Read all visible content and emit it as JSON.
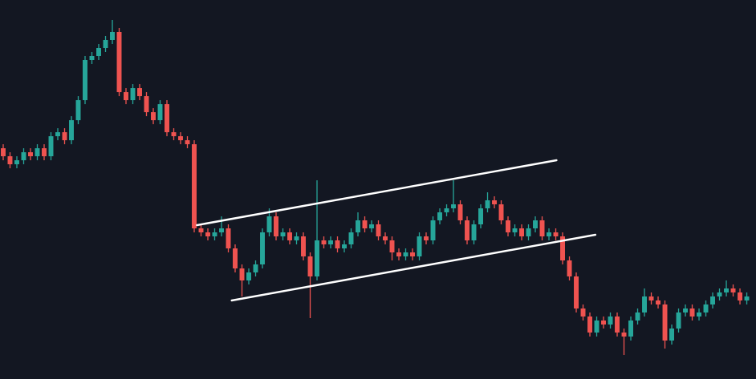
{
  "chart_data": {
    "type": "candlestick",
    "up_color": "#26a69a",
    "down_color": "#ef5350",
    "background": "#131722",
    "grid": false,
    "xlim": [
      -0.47,
      110.35
    ],
    "ylim": [
      0,
      473
    ],
    "open": [
      288,
      278,
      268,
      273,
      283,
      278,
      288,
      278,
      303,
      308,
      298,
      323,
      348,
      398,
      403,
      413,
      423,
      433,
      358,
      348,
      363,
      353,
      333,
      323,
      343,
      308,
      303,
      298,
      293,
      188,
      183,
      178,
      183,
      188,
      163,
      138,
      123,
      133,
      143,
      183,
      203,
      178,
      183,
      173,
      178,
      153,
      128,
      173,
      168,
      173,
      163,
      168,
      183,
      198,
      188,
      193,
      178,
      173,
      158,
      153,
      158,
      153,
      178,
      173,
      198,
      208,
      213,
      218,
      198,
      173,
      193,
      213,
      223,
      218,
      198,
      183,
      188,
      178,
      188,
      198,
      178,
      183,
      178,
      148,
      128,
      88,
      78,
      58,
      73,
      68,
      78,
      58,
      53,
      73,
      83,
      103,
      98,
      93,
      48,
      63,
      83,
      88,
      78,
      83,
      93,
      103,
      108,
      113,
      108,
      98
    ],
    "high": [
      293,
      283,
      278,
      288,
      288,
      293,
      293,
      308,
      313,
      313,
      328,
      353,
      403,
      408,
      418,
      428,
      448,
      438,
      363,
      368,
      368,
      358,
      338,
      348,
      348,
      313,
      308,
      303,
      298,
      193,
      188,
      188,
      203,
      193,
      168,
      143,
      138,
      148,
      188,
      213,
      208,
      188,
      188,
      183,
      183,
      158,
      248,
      178,
      178,
      178,
      173,
      188,
      208,
      203,
      198,
      198,
      183,
      178,
      163,
      163,
      163,
      183,
      183,
      203,
      213,
      218,
      248,
      223,
      203,
      198,
      218,
      233,
      228,
      223,
      203,
      193,
      193,
      193,
      203,
      203,
      188,
      188,
      183,
      153,
      133,
      93,
      83,
      78,
      78,
      83,
      83,
      63,
      78,
      88,
      113,
      108,
      103,
      98,
      68,
      88,
      93,
      93,
      88,
      98,
      108,
      113,
      123,
      118,
      113,
      108
    ],
    "low": [
      273,
      263,
      263,
      268,
      273,
      273,
      273,
      273,
      298,
      293,
      293,
      318,
      343,
      393,
      398,
      408,
      418,
      353,
      343,
      343,
      348,
      328,
      318,
      318,
      303,
      298,
      293,
      288,
      183,
      178,
      173,
      173,
      178,
      158,
      133,
      103,
      118,
      128,
      138,
      178,
      173,
      173,
      168,
      168,
      148,
      76,
      123,
      163,
      163,
      158,
      158,
      163,
      178,
      183,
      183,
      173,
      168,
      148,
      148,
      148,
      148,
      148,
      168,
      168,
      193,
      203,
      208,
      193,
      168,
      168,
      188,
      208,
      213,
      193,
      178,
      178,
      173,
      173,
      183,
      173,
      173,
      173,
      143,
      123,
      83,
      73,
      53,
      53,
      63,
      63,
      53,
      30,
      48,
      68,
      78,
      93,
      88,
      38,
      43,
      58,
      78,
      73,
      73,
      78,
      88,
      98,
      103,
      103,
      93,
      93
    ],
    "close": [
      278,
      268,
      273,
      283,
      278,
      288,
      278,
      303,
      308,
      298,
      323,
      348,
      398,
      403,
      413,
      423,
      433,
      358,
      348,
      363,
      353,
      333,
      323,
      343,
      308,
      303,
      298,
      293,
      188,
      183,
      178,
      183,
      188,
      163,
      138,
      123,
      133,
      143,
      183,
      203,
      178,
      183,
      173,
      178,
      153,
      128,
      173,
      168,
      173,
      163,
      168,
      183,
      198,
      188,
      193,
      178,
      173,
      158,
      153,
      158,
      153,
      178,
      173,
      198,
      208,
      213,
      218,
      198,
      173,
      193,
      213,
      223,
      218,
      198,
      183,
      188,
      178,
      188,
      198,
      178,
      183,
      178,
      148,
      128,
      88,
      78,
      58,
      73,
      68,
      78,
      58,
      53,
      73,
      83,
      103,
      98,
      93,
      48,
      63,
      83,
      88,
      78,
      83,
      93,
      103,
      108,
      113,
      108,
      98,
      103
    ],
    "lines": [
      {
        "color": "#ffffff",
        "x": [
          28.4,
          81.1
        ],
        "y": [
          192,
          273
        ]
      },
      {
        "color": "#ffffff",
        "x": [
          33.5,
          86.8
        ],
        "y": [
          98,
          180
        ]
      }
    ]
  }
}
